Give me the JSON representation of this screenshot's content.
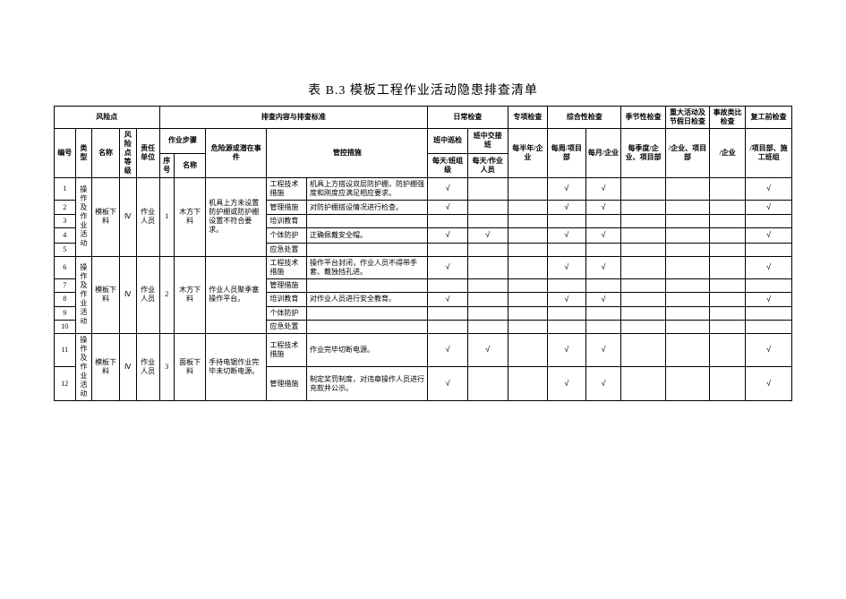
{
  "title": "表 B.3 模板工程作业活动隐患排查清单",
  "check_mark": "√",
  "headers": {
    "risk_point": "风险点",
    "inspect_std": "排查内容与排查标准",
    "daily": "日常检查",
    "special": "专项检查",
    "comprehensive": "综合性检查",
    "seasonal": "季节性检查",
    "holiday": "重大活动及节假日检查",
    "accident": "事故类比检查",
    "resume": "复工前检查",
    "seq": "编号",
    "type": "类型",
    "name": "名称",
    "level": "风险点等级",
    "unit": "责任单位",
    "step": "作业步骤",
    "step_no": "序号",
    "step_name": "名称",
    "hazard": "危险源或潜在事件",
    "measure": "管控措施",
    "daily_patrol": "班中巡检",
    "daily_shift": "班中交接班",
    "daily_sub1": "每天/班组级",
    "daily_sub2": "每天/作业人员",
    "special_sub": "每半年/企业",
    "comp_sub1": "每周/项目部",
    "comp_sub2": "每月/企业",
    "season_sub": "每季度/企业、项目部",
    "holiday_sub": "/企业、项目部",
    "accident_sub": "/企业",
    "resume_sub": "/项目部、施工班组"
  },
  "risk_type": "操作及作业活动",
  "risk_name": "模板下料",
  "risk_level": "Ⅳ",
  "resp_unit": "作业人员",
  "groups": [
    {
      "step_no": "1",
      "step_name": "木方下料",
      "hazard": "机具上方未设置防护棚或防护棚设置不符合要求。",
      "rows": [
        {
          "seq": "1",
          "mtype": "工程技术措施",
          "measure": "机具上方搭设双层防护棚，防护棚强度和刚度应满足相应要求。",
          "checks": {
            "d1": true,
            "d2": false,
            "sp": false,
            "c1": true,
            "c2": true,
            "se": false,
            "ho": false,
            "ac": false,
            "re": true
          }
        },
        {
          "seq": "2",
          "mtype": "管理措施",
          "measure": "对防护棚搭设情况进行检查。",
          "checks": {
            "d1": true,
            "d2": false,
            "sp": false,
            "c1": true,
            "c2": true,
            "se": false,
            "ho": false,
            "ac": false,
            "re": true
          }
        },
        {
          "seq": "3",
          "mtype": "培训教育",
          "measure": "",
          "checks": {}
        },
        {
          "seq": "4",
          "mtype": "个体防护",
          "measure": "正确佩戴安全帽。",
          "checks": {
            "d1": true,
            "d2": true,
            "sp": false,
            "c1": true,
            "c2": true,
            "se": false,
            "ho": false,
            "ac": false,
            "re": true
          }
        },
        {
          "seq": "5",
          "mtype": "应急处置",
          "measure": "",
          "checks": {}
        }
      ]
    },
    {
      "step_no": "2",
      "step_name": "木方下料",
      "hazard": "作业人员聚季塞操作平台。",
      "rows": [
        {
          "seq": "6",
          "mtype": "工程技术措施",
          "measure": "操作平台封闭，作业人员不得带手套、戴独挡孔进。",
          "checks": {
            "d1": true,
            "d2": false,
            "sp": false,
            "c1": true,
            "c2": true,
            "se": false,
            "ho": false,
            "ac": false,
            "re": true
          }
        },
        {
          "seq": "7",
          "mtype": "管理措施",
          "measure": "",
          "checks": {}
        },
        {
          "seq": "8",
          "mtype": "培训教育",
          "measure": "对作业人员进行安全教育。",
          "checks": {
            "d1": true,
            "d2": false,
            "sp": false,
            "c1": true,
            "c2": true,
            "se": false,
            "ho": false,
            "ac": false,
            "re": true
          }
        },
        {
          "seq": "9",
          "mtype": "个体防护",
          "measure": "",
          "checks": {}
        },
        {
          "seq": "10",
          "mtype": "应急处置",
          "measure": "",
          "checks": {}
        }
      ]
    },
    {
      "step_no": "3",
      "step_name": "面板下料",
      "hazard": "手持电锯作业完毕未切断电源。",
      "rows": [
        {
          "seq": "11",
          "mtype": "工程技术措施",
          "measure": "作业完毕切断电源。",
          "checks": {
            "d1": true,
            "d2": true,
            "sp": false,
            "c1": true,
            "c2": true,
            "se": false,
            "ho": false,
            "ac": false,
            "re": true
          }
        },
        {
          "seq": "12",
          "mtype": "管理措施",
          "measure": "制定奖罚制度，对违章操作人员进行充款并公示。",
          "checks": {
            "d1": true,
            "d2": false,
            "sp": false,
            "c1": true,
            "c2": true,
            "se": false,
            "ho": false,
            "ac": false,
            "re": true
          }
        }
      ]
    }
  ]
}
